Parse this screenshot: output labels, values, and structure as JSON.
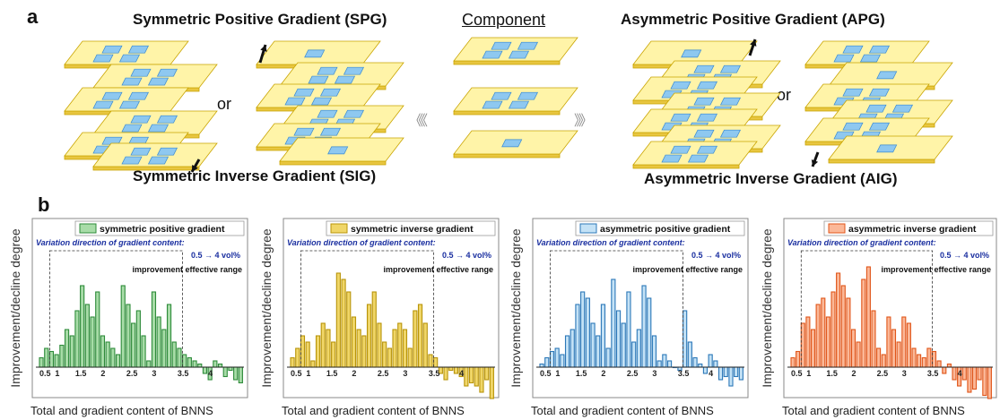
{
  "panel_a": {
    "letter": "a",
    "spg_title": "Symmetric Positive Gradient (SPG)",
    "sig_title": "Symmetric Inverse Gradient (SIG)",
    "component_title": "Component",
    "apg_title": "Asymmetric Positive Gradient (APG)",
    "aig_title": "Asymmetric Inverse Gradient (AIG)",
    "or_left": "or",
    "or_right": "or",
    "chevrons_left": "《《",
    "chevrons_right": "》》"
  },
  "panel_b": {
    "letter": "b"
  },
  "colors": {
    "sheet_fill": "#fff4a8",
    "sheet_edge": "#c9a400",
    "flake_fill": "#8ec8f0",
    "flake_edge": "#3a8ad0"
  },
  "chart_data": [
    {
      "type": "bar",
      "legend": "symmetric positive gradient",
      "annotation": "Variation direction of gradient content:",
      "range_text": "0.5 → 4 vol%",
      "effective_label": "improvement effective range",
      "ylabel": "Improvement/decline degree",
      "xlabel": "Total and gradient content of BNNS",
      "tick_labels": [
        "0.5",
        "1",
        "1.5",
        "2",
        "2.5",
        "3",
        "3.5",
        "4"
      ],
      "color": "#2e8b3a",
      "fill": "#a8dca8",
      "values": [
        1.5,
        3,
        2.5,
        2,
        3.5,
        6,
        5,
        9,
        13,
        10,
        8,
        12,
        5,
        4,
        3,
        2,
        13,
        10,
        7,
        9,
        5,
        1,
        12,
        8,
        6,
        10,
        4,
        3,
        2,
        1.5,
        1,
        0.5,
        -1,
        -2,
        1,
        0.5,
        -1.5,
        -0.5,
        -2,
        -2.5
      ]
    },
    {
      "type": "bar",
      "legend": "symmetric inverse gradient",
      "annotation": "Variation direction of gradient content:",
      "range_text": "0.5 → 4 vol%",
      "effective_label": "improvement effective range",
      "ylabel": "Improvement/decline degree",
      "xlabel": "Total and gradient content of BNNS",
      "tick_labels": [
        "0.5",
        "1",
        "1.5",
        "2",
        "2.5",
        "3",
        "3.5",
        "4"
      ],
      "color": "#b8940a",
      "fill": "#f0d668",
      "values": [
        1.5,
        3,
        5,
        4,
        1,
        5,
        7,
        6,
        4,
        15,
        14,
        12,
        8,
        6,
        5,
        10,
        12,
        7,
        4,
        3,
        6,
        7,
        6,
        3,
        9,
        10,
        7,
        2,
        1.5,
        -1,
        -2,
        -0.5,
        -1,
        -1.5,
        -3,
        -2.5,
        -3,
        -4,
        -2,
        -5
      ]
    },
    {
      "type": "bar",
      "legend": "asymmetric positive gradient",
      "annotation": "Variation direction of gradient content:",
      "range_text": "0.5 → 4 vol%",
      "effective_label": "improvement effective range",
      "ylabel": "Improvement/decline degree",
      "xlabel": "Total and gradient content of BNNS",
      "tick_labels": [
        "0.5",
        "1",
        "1.5",
        "2",
        "2.5",
        "3",
        "3.5",
        "4"
      ],
      "color": "#2c78b8",
      "fill": "#c4e2f6",
      "values": [
        0.5,
        1.5,
        2.5,
        3,
        2,
        5,
        6,
        10,
        12,
        11,
        7,
        5,
        10,
        3,
        14,
        9,
        7,
        12,
        4,
        6,
        13,
        11,
        5,
        1,
        2,
        1,
        0,
        -0.5,
        9,
        4,
        1.5,
        0.5,
        -1,
        2,
        1,
        -2,
        -1.5,
        -3,
        -1.5,
        -2
      ]
    },
    {
      "type": "bar",
      "legend": "asymmetric inverse gradient",
      "annotation": "Variation direction of gradient content:",
      "range_text": "0.5 → 4 vol%",
      "effective_label": "improvement effective range",
      "ylabel": "Improvement/decline degree",
      "xlabel": "Total and gradient content of BNNS",
      "tick_labels": [
        "0.5",
        "1",
        "1.5",
        "2",
        "2.5",
        "3",
        "3.5",
        "4"
      ],
      "color": "#e0561a",
      "fill": "#fbb898",
      "values": [
        1.5,
        2.5,
        7,
        8,
        6,
        10,
        11,
        8,
        12,
        15,
        13,
        11,
        6,
        4,
        14,
        16,
        9,
        3,
        2,
        8,
        6,
        4,
        8,
        7,
        3,
        2,
        1.5,
        3,
        2.5,
        1,
        -1,
        0.5,
        -2,
        -3,
        -2,
        -4,
        -3.5,
        -2,
        -4.5,
        -5
      ]
    }
  ]
}
